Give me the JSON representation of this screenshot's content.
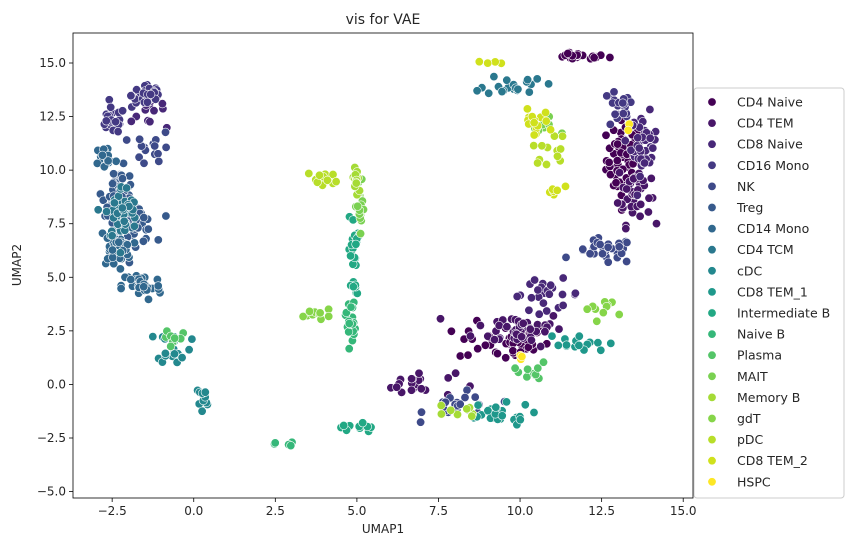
{
  "chart_data": {
    "type": "scatter",
    "title": "vis for VAE",
    "xlabel": "UMAP1",
    "ylabel": "UMAP2",
    "xlim": [
      -3.7,
      15.3
    ],
    "ylim": [
      -5.3,
      16.4
    ],
    "xticks": [
      -2.5,
      0.0,
      2.5,
      5.0,
      7.5,
      10.0,
      12.5,
      15.0
    ],
    "xtick_labels": [
      "−2.5",
      "0.0",
      "2.5",
      "5.0",
      "7.5",
      "10.0",
      "12.5",
      "15.0"
    ],
    "yticks": [
      -5.0,
      -2.5,
      0.0,
      2.5,
      5.0,
      7.5,
      10.0,
      12.5,
      15.0
    ],
    "ytick_labels": [
      "−5.0",
      "−2.5",
      "0.0",
      "2.5",
      "5.0",
      "7.5",
      "10.0",
      "12.5",
      "15.0"
    ],
    "grid": false,
    "legend_position": "right, outside plot",
    "marker_edge_color": "#ffffff",
    "series": [
      {
        "name": "CD4 Naive",
        "color": "#440154",
        "clusters": [
          [
            13.2,
            10.5,
            0.55,
            1.8,
            70
          ],
          [
            11.8,
            15.3,
            0.9,
            0.15,
            25
          ],
          [
            9.5,
            2.0,
            1.4,
            0.9,
            40
          ]
        ]
      },
      {
        "name": "CD4 TEM",
        "color": "#481668",
        "clusters": [
          [
            10.0,
            2.6,
            1.4,
            0.8,
            45
          ],
          [
            13.5,
            9.0,
            0.5,
            1.5,
            40
          ],
          [
            6.8,
            0.0,
            1.2,
            0.6,
            20
          ]
        ]
      },
      {
        "name": "CD8 Naive",
        "color": "#482878",
        "clusters": [
          [
            13.8,
            11.2,
            0.4,
            1.4,
            40
          ],
          [
            10.8,
            4.2,
            1.1,
            0.7,
            25
          ],
          [
            -1.5,
            13.0,
            0.6,
            0.8,
            20
          ]
        ]
      },
      {
        "name": "CD16 Mono",
        "color": "#443983",
        "clusters": [
          [
            -1.4,
            13.5,
            0.5,
            0.6,
            35
          ],
          [
            -2.5,
            12.3,
            0.4,
            0.6,
            25
          ],
          [
            13.0,
            12.8,
            0.5,
            0.9,
            20
          ]
        ]
      },
      {
        "name": "NK",
        "color": "#3e4a89",
        "clusters": [
          [
            12.6,
            6.2,
            0.9,
            0.6,
            30
          ],
          [
            8.2,
            -1.0,
            1.1,
            0.6,
            20
          ],
          [
            -1.2,
            11.0,
            0.6,
            0.8,
            15
          ]
        ]
      },
      {
        "name": "Treg",
        "color": "#375a8c",
        "clusters": [
          [
            -2.3,
            9.0,
            0.5,
            1.1,
            45
          ],
          [
            -1.8,
            7.5,
            0.6,
            0.9,
            30
          ]
        ]
      },
      {
        "name": "CD14 Mono",
        "color": "#31688e",
        "clusters": [
          [
            -2.4,
            6.4,
            0.5,
            0.9,
            45
          ],
          [
            -1.6,
            4.6,
            0.6,
            0.7,
            35
          ],
          [
            -2.7,
            10.6,
            0.3,
            0.6,
            20
          ]
        ]
      },
      {
        "name": "CD4 TCM",
        "color": "#2a788e",
        "clusters": [
          [
            -2.2,
            8.0,
            0.5,
            1.3,
            45
          ],
          [
            9.8,
            14.0,
            0.9,
            0.5,
            20
          ]
        ]
      },
      {
        "name": "cDC",
        "color": "#23888e",
        "clusters": [
          [
            -0.6,
            1.8,
            0.5,
            0.8,
            20
          ],
          [
            0.2,
            -0.8,
            0.3,
            0.8,
            12
          ]
        ]
      },
      {
        "name": "CD8 TEM_1",
        "color": "#1f988b",
        "clusters": [
          [
            9.2,
            -1.4,
            1.2,
            0.5,
            25
          ],
          [
            11.6,
            1.8,
            1.0,
            0.6,
            15
          ]
        ]
      },
      {
        "name": "Intermediate B",
        "color": "#22a884",
        "clusters": [
          [
            4.9,
            6.0,
            0.15,
            1.9,
            25
          ],
          [
            5.0,
            -2.0,
            0.5,
            0.3,
            10
          ]
        ]
      },
      {
        "name": "Naive B",
        "color": "#35b779",
        "clusters": [
          [
            4.8,
            3.0,
            0.15,
            1.2,
            20
          ],
          [
            2.8,
            -2.8,
            0.3,
            0.1,
            6
          ]
        ]
      },
      {
        "name": "Plasma",
        "color": "#54c568",
        "clusters": [
          [
            10.3,
            0.5,
            1.0,
            0.5,
            12
          ],
          [
            -0.6,
            2.2,
            0.4,
            0.6,
            8
          ]
        ]
      },
      {
        "name": "MAIT",
        "color": "#7ad151",
        "clusters": [
          [
            5.1,
            8.2,
            0.12,
            1.5,
            20
          ],
          [
            10.6,
            12.0,
            0.6,
            0.6,
            10
          ]
        ]
      },
      {
        "name": "Memory B",
        "color": "#a5db36",
        "clusters": [
          [
            5.0,
            9.5,
            0.15,
            0.8,
            15
          ],
          [
            8.0,
            -1.2,
            0.8,
            0.4,
            8
          ]
        ]
      },
      {
        "name": "gdT",
        "color": "#86d549",
        "clusters": [
          [
            3.8,
            3.3,
            0.4,
            0.2,
            10
          ],
          [
            12.5,
            3.5,
            0.5,
            0.5,
            10
          ]
        ]
      },
      {
        "name": "pDC",
        "color": "#b8de29",
        "clusters": [
          [
            4.0,
            9.6,
            0.5,
            0.4,
            12
          ],
          [
            11.0,
            11.0,
            0.6,
            0.7,
            12
          ]
        ]
      },
      {
        "name": "CD8 TEM_2",
        "color": "#d0e11c",
        "clusters": [
          [
            10.4,
            12.2,
            0.5,
            0.6,
            15
          ],
          [
            11.0,
            9.0,
            0.3,
            0.4,
            6
          ],
          [
            9.2,
            15.0,
            0.3,
            0.3,
            4
          ]
        ]
      },
      {
        "name": "HSPC",
        "color": "#fde725",
        "clusters": [
          [
            10.0,
            1.2,
            0.2,
            0.2,
            3
          ],
          [
            13.3,
            12.1,
            0.2,
            0.2,
            2
          ]
        ]
      }
    ],
    "cluster_format": "[x_center, y_center, x_spread, y_spread, point_count] in data units"
  }
}
